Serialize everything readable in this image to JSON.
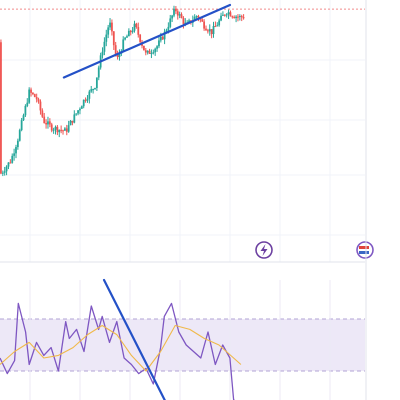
{
  "chart_data": [
    {
      "panel": "price",
      "type": "candlestick",
      "title": "",
      "xlabel": "",
      "ylabel": "",
      "xlim": [
        0,
        100
      ],
      "ylim": [
        0,
        100
      ],
      "grid": true,
      "reference_line": {
        "y": 98,
        "style": "dotted",
        "color": "#f28b8b"
      },
      "trendline": {
        "x": [
          17.5,
          63
        ],
        "y": [
          65,
          100
        ],
        "color": "#2451c7"
      },
      "up_color": "#26a69a",
      "down_color": "#ef5350",
      "anchors": {
        "x": [
          0,
          3,
          5,
          8,
          10,
          12,
          14,
          16,
          18,
          20,
          23,
          26,
          28,
          30,
          32,
          34,
          37,
          40,
          43,
          45,
          48,
          51,
          54,
          56,
          58,
          60,
          62,
          64,
          66,
          67
        ],
        "y": [
          82,
          75,
          64,
          42,
          45,
          56,
          59,
          60,
          61,
          55,
          46,
          39,
          22,
          8,
          27,
          17,
          10,
          24,
          20,
          14,
          2,
          10,
          5,
          10,
          13,
          8,
          3,
          5,
          6,
          5
        ]
      },
      "candle_count": 130,
      "badges": [
        {
          "name": "lightning-icon",
          "color": "#6b3fa0"
        },
        {
          "name": "flag-icon",
          "color": "#e0443a"
        }
      ]
    },
    {
      "panel": "oscillator",
      "type": "line",
      "title": "",
      "xlabel": "",
      "ylabel": "",
      "xlim": [
        0,
        100
      ],
      "ylim": [
        0,
        100
      ],
      "band": {
        "upper": 70,
        "lower": 30,
        "color": "#ede8f7"
      },
      "trendline": {
        "x": [
          28.5,
          46.5
        ],
        "y": [
          100,
          0
        ],
        "color": "#2451c7"
      },
      "series": [
        {
          "values_x": [
            0,
            2,
            4,
            5,
            7,
            8,
            10,
            12,
            14,
            16,
            18,
            19,
            21,
            23,
            25,
            27,
            28,
            30,
            32,
            34,
            36,
            38,
            40,
            42,
            44,
            45,
            47,
            49,
            51,
            53,
            55,
            57,
            59,
            61,
            63,
            64,
            65,
            66
          ],
          "values_y": [
            40,
            28,
            38,
            82,
            60,
            35,
            52,
            42,
            48,
            30,
            68,
            55,
            62,
            45,
            80,
            62,
            72,
            52,
            68,
            40,
            35,
            28,
            32,
            20,
            48,
            72,
            82,
            60,
            50,
            45,
            40,
            60,
            35,
            50,
            40,
            8,
            5,
            3
          ],
          "color": "#7e57c2"
        },
        {
          "values_x": [
            0,
            4,
            8,
            12,
            16,
            20,
            24,
            28,
            32,
            36,
            40,
            44,
            48,
            52,
            56,
            60,
            64,
            66
          ],
          "values_y": [
            35,
            45,
            52,
            40,
            42,
            48,
            58,
            65,
            58,
            42,
            30,
            45,
            65,
            62,
            55,
            50,
            40,
            35
          ],
          "color": "#f0b94a"
        }
      ]
    }
  ]
}
